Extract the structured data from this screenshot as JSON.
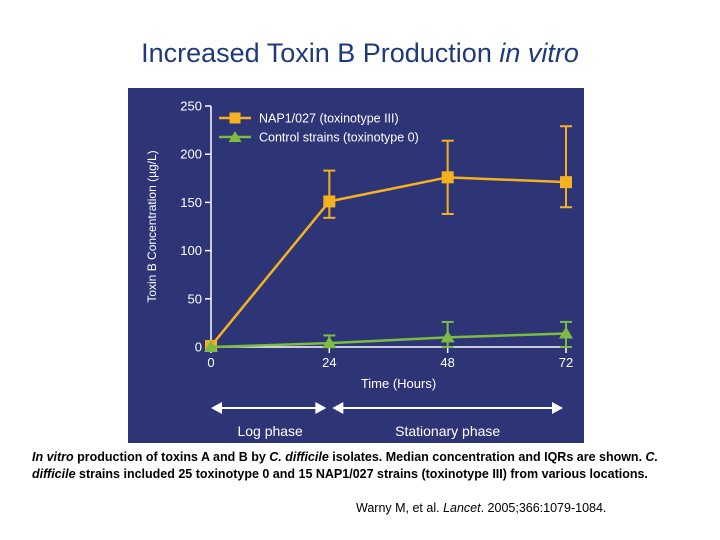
{
  "slide": {
    "title_plain": "Increased Toxin B Production ",
    "title_italic": "in vitro",
    "caption": {
      "italic_1": "In vitro",
      "text_1": " production of toxins A and B by ",
      "italic_2": "C. difficile",
      "text_2": " isolates. Median concentration and IQRs are shown. ",
      "italic_3": "C. difficile",
      "text_3": " strains included 25 toxinotype 0 and 15 NAP1/027 strains (toxinotype III) from various locations."
    },
    "citation": {
      "authors": "Warny M, et al. ",
      "journal": "Lancet",
      "details": ". 2005;366:1079-1084."
    }
  },
  "chart_data": {
    "type": "line",
    "title": "",
    "xlabel": "Time (Hours)",
    "ylabel": "Toxin B Concentration (µg/L)",
    "x": [
      0,
      24,
      48,
      72
    ],
    "x_ticks": [
      "0",
      "24",
      "48",
      "72"
    ],
    "y_ticks": [
      "0",
      "50",
      "100",
      "150",
      "200",
      "250"
    ],
    "ylim": [
      0,
      250
    ],
    "xlim": [
      0,
      72
    ],
    "legend_position": "top-left",
    "series": [
      {
        "name": "NAP1/027 (toxinotype III)",
        "color": "#f5b120",
        "marker": "square",
        "values": [
          1,
          151,
          176,
          171
        ],
        "err_low": [
          null,
          134,
          138,
          145
        ],
        "err_high": [
          null,
          183,
          214,
          229
        ]
      },
      {
        "name": "Control strains (toxinotype 0)",
        "color": "#7dbb42",
        "marker": "triangle",
        "values": [
          0,
          4,
          10,
          14
        ],
        "err_low": [
          null,
          0,
          0,
          0
        ],
        "err_high": [
          null,
          12,
          26,
          26
        ]
      }
    ],
    "phases": [
      {
        "label": "Log phase",
        "from": 0,
        "to": 24
      },
      {
        "label": "Stationary phase",
        "from": 24,
        "to": 72
      }
    ],
    "colors": {
      "background": "#2d3577",
      "axis": "#ffffff",
      "text": "#ffffff"
    }
  }
}
